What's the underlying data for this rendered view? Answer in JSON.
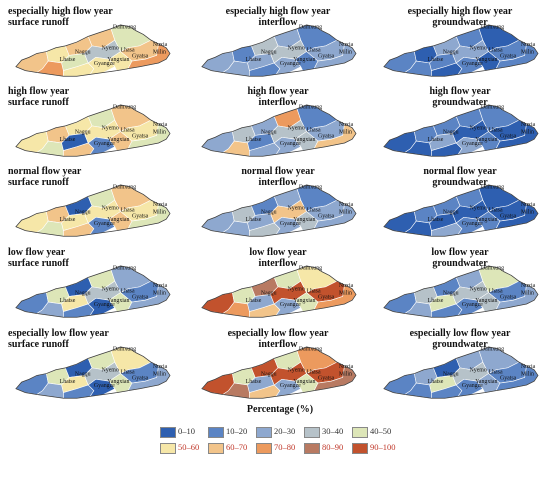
{
  "colors": [
    "#2e5fb0",
    "#5b84c4",
    "#8ea8cf",
    "#b6c2c9",
    "#dde6b8",
    "#f6e7a8",
    "#f2c48a",
    "#ec9a5e",
    "#b87a62",
    "#c2522d"
  ],
  "panels": [
    {
      "id": "shfy-sr",
      "title": [
        "especially high flow year",
        "surface runoff"
      ],
      "align": "left",
      "palette": [
        6,
        5,
        7,
        6,
        4,
        5,
        6,
        3,
        5,
        4
      ]
    },
    {
      "id": "shfy-if",
      "title": [
        "especially high flow year",
        "interflow"
      ],
      "align": "center",
      "palette": [
        2,
        1,
        2,
        3,
        2,
        1,
        2,
        3,
        2,
        1
      ]
    },
    {
      "id": "shfy-gw",
      "title": [
        "especially high flow year",
        "groundwater"
      ],
      "align": "center",
      "palette": [
        1,
        0,
        1,
        2,
        1,
        0,
        1,
        2,
        1,
        0
      ]
    },
    {
      "id": "hfy-sr",
      "title": [
        "high flow year",
        "surface runoff"
      ],
      "align": "left",
      "palette": [
        5,
        6,
        4,
        5,
        0,
        6,
        4,
        5,
        1,
        6
      ]
    },
    {
      "id": "hfy-if",
      "title": [
        "high flow year",
        "interflow"
      ],
      "align": "center",
      "palette": [
        2,
        3,
        6,
        2,
        1,
        2,
        7,
        3,
        2,
        1
      ]
    },
    {
      "id": "hfy-gw",
      "title": [
        "high flow year",
        "groundwater"
      ],
      "align": "center",
      "palette": [
        0,
        1,
        0,
        1,
        2,
        0,
        1,
        0,
        2,
        1
      ]
    },
    {
      "id": "nfy-sr",
      "title": [
        "normal flow year",
        "surface runoff"
      ],
      "align": "left",
      "palette": [
        5,
        6,
        4,
        0,
        5,
        6,
        4,
        5,
        1,
        6
      ]
    },
    {
      "id": "nfy-if",
      "title": [
        "normal flow year",
        "interflow"
      ],
      "align": "center",
      "palette": [
        2,
        3,
        2,
        1,
        2,
        3,
        2,
        6,
        2,
        1
      ]
    },
    {
      "id": "nfy-gw",
      "title": [
        "normal flow year",
        "groundwater"
      ],
      "align": "center",
      "palette": [
        0,
        1,
        0,
        1,
        0,
        2,
        1,
        0,
        1,
        0
      ]
    },
    {
      "id": "lfy-sr",
      "title": [
        "low flow year",
        "surface runoff"
      ],
      "align": "left",
      "palette": [
        1,
        4,
        2,
        0,
        5,
        1,
        4,
        3,
        0,
        2
      ]
    },
    {
      "id": "lfy-if",
      "title": [
        "low flow year",
        "interflow"
      ],
      "align": "center",
      "palette": [
        9,
        4,
        7,
        8,
        2,
        6,
        4,
        9,
        2,
        5
      ]
    },
    {
      "id": "lfy-gw",
      "title": [
        "low flow year",
        "groundwater"
      ],
      "align": "center",
      "palette": [
        1,
        3,
        2,
        1,
        4,
        1,
        2,
        3,
        1,
        4
      ]
    },
    {
      "id": "slfy-sr",
      "title": [
        "especially low flow year",
        "surface runoff"
      ],
      "align": "left",
      "palette": [
        1,
        4,
        2,
        0,
        5,
        1,
        4,
        3,
        0,
        5
      ]
    },
    {
      "id": "slfy-if",
      "title": [
        "especially low flow year",
        "interflow"
      ],
      "align": "center",
      "palette": [
        9,
        4,
        8,
        9,
        2,
        6,
        4,
        9,
        2,
        7
      ]
    },
    {
      "id": "slfy-gw",
      "title": [
        "especially low flow year",
        "groundwater"
      ],
      "align": "center",
      "palette": [
        1,
        2,
        1,
        0,
        4,
        1,
        2,
        3,
        1,
        2
      ]
    }
  ],
  "place_names": [
    "Damxung",
    "Lhasa",
    "Nyemo",
    "Nagqu",
    "Gyangze",
    "Yangxian",
    "Gyatsa",
    "Nuxia",
    "Milin",
    "Lhatse"
  ],
  "legend": {
    "title": "Percentage (%)",
    "items": [
      {
        "label": "0–10",
        "color": "#2e5fb0"
      },
      {
        "label": "10–20",
        "color": "#5b84c4"
      },
      {
        "label": "20–30",
        "color": "#8ea8cf"
      },
      {
        "label": "30–40",
        "color": "#b6c2c9"
      },
      {
        "label": "40–50",
        "color": "#dde6b8"
      },
      {
        "label": "50–60",
        "color": "#f6e7a8"
      },
      {
        "label": "60–70",
        "color": "#f2c48a"
      },
      {
        "label": "70–80",
        "color": "#ec9a5e"
      },
      {
        "label": "80–90",
        "color": "#b87a62"
      },
      {
        "label": "90–100",
        "color": "#c2522d"
      }
    ]
  }
}
